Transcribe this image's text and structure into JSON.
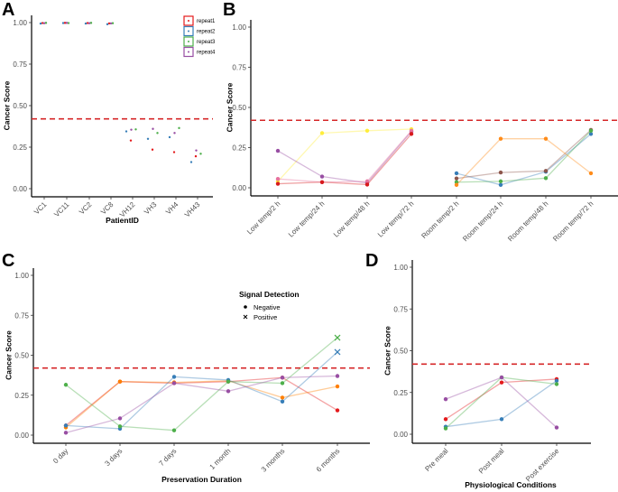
{
  "chart_data": [
    {
      "panel": "A",
      "type": "scatter",
      "title": "",
      "xlabel": "PatientID",
      "ylabel": "Cancer Score",
      "ylim": [
        0,
        1
      ],
      "yticks": [
        "0.00",
        "0.25",
        "0.50",
        "0.75",
        "1.00"
      ],
      "threshold": 0.42,
      "categories": [
        "VC1",
        "VC11",
        "VC2",
        "VC8",
        "VH12",
        "VH3",
        "VH4",
        "VH43"
      ],
      "legend": {
        "position": "top-right",
        "entries": [
          "repeat1",
          "repeat2",
          "repeat3",
          "repeat4"
        ]
      },
      "series": [
        {
          "name": "repeat1",
          "color": "#e41a1c",
          "values": [
            0.997,
            0.998,
            0.997,
            0.995,
            0.29,
            0.235,
            0.22,
            0.195
          ]
        },
        {
          "name": "repeat2",
          "color": "#377eb8",
          "values": [
            0.994,
            0.997,
            0.994,
            0.99,
            0.345,
            0.3,
            0.31,
            0.16
          ]
        },
        {
          "name": "repeat3",
          "color": "#4daf4a",
          "values": [
            0.998,
            0.997,
            0.998,
            0.996,
            0.357,
            0.335,
            0.365,
            0.21
          ]
        },
        {
          "name": "repeat4",
          "color": "#984ea3",
          "values": [
            0.996,
            0.998,
            0.996,
            0.995,
            0.355,
            0.36,
            0.335,
            0.23
          ]
        }
      ]
    },
    {
      "panel": "B",
      "type": "line",
      "xlabel": "",
      "ylabel": "Cancer Score",
      "ylim": [
        0,
        1
      ],
      "yticks": [
        "0.00",
        "0.25",
        "0.50",
        "0.75",
        "1.00"
      ],
      "threshold": 0.42,
      "categories": [
        "Low temp/2 h",
        "Low temp/24 h",
        "Low temp/48 h",
        "Low temp/72 h",
        "Room temp/2 h",
        "Room temp/24 h",
        "Room temp/48 h",
        "Room temp/72 h"
      ],
      "series": [
        {
          "name": "low-yellow",
          "color": "#ffed3a",
          "group": "low",
          "values": [
            0.04,
            0.34,
            0.355,
            0.365
          ]
        },
        {
          "name": "low-purple",
          "color": "#984ea3",
          "group": "low",
          "values": [
            0.23,
            0.07,
            0.03,
            0.35
          ]
        },
        {
          "name": "low-pink",
          "color": "#e7719d",
          "group": "low",
          "values": [
            0.055,
            0.035,
            0.04,
            0.355
          ]
        },
        {
          "name": "low-red",
          "color": "#d7191c",
          "group": "low",
          "values": [
            0.025,
            0.035,
            0.02,
            0.335
          ]
        },
        {
          "name": "room-blue",
          "color": "#377eb8",
          "group": "room",
          "values": [
            0.09,
            0.018,
            0.1,
            0.335
          ]
        },
        {
          "name": "room-brown",
          "color": "#8c564b",
          "group": "room",
          "values": [
            0.058,
            0.095,
            0.105,
            0.36
          ]
        },
        {
          "name": "room-green",
          "color": "#4daf4a",
          "group": "room",
          "values": [
            0.035,
            0.04,
            0.06,
            0.355
          ]
        },
        {
          "name": "room-orange",
          "color": "#ff8c1a",
          "group": "room",
          "values": [
            0.018,
            0.305,
            0.305,
            0.09
          ]
        }
      ]
    },
    {
      "panel": "C",
      "type": "line",
      "xlabel": "Preservation Duration",
      "ylabel": "Cancer Score",
      "ylim": [
        0,
        1
      ],
      "yticks": [
        "0.00",
        "0.25",
        "0.50",
        "0.75",
        "1.00"
      ],
      "threshold": 0.42,
      "categories": [
        "0 day",
        "3 days",
        "7 days",
        "1 month",
        "3 months",
        "6 months"
      ],
      "legend": {
        "position": "top-right",
        "title": "Signal Detection",
        "entries": [
          {
            "label": "Negative",
            "shape": "dot"
          },
          {
            "label": "Positive",
            "shape": "cross"
          }
        ]
      },
      "series": [
        {
          "name": "red",
          "color": "#e41a1c",
          "values": [
            0.06,
            0.335,
            0.325,
            0.335,
            0.36,
            0.155
          ],
          "positive": [
            false,
            false,
            false,
            false,
            false,
            false
          ]
        },
        {
          "name": "orange",
          "color": "#ff7f00",
          "values": [
            0.048,
            0.335,
            0.33,
            0.34,
            0.235,
            0.305
          ],
          "positive": [
            false,
            false,
            false,
            false,
            false,
            false
          ]
        },
        {
          "name": "blue",
          "color": "#377eb8",
          "values": [
            0.06,
            0.04,
            0.365,
            0.345,
            0.21,
            0.52
          ],
          "positive": [
            false,
            false,
            false,
            false,
            false,
            true
          ]
        },
        {
          "name": "green",
          "color": "#4daf4a",
          "values": [
            0.315,
            0.055,
            0.03,
            0.335,
            0.325,
            0.61
          ],
          "positive": [
            false,
            false,
            false,
            false,
            false,
            true
          ]
        },
        {
          "name": "purple",
          "color": "#984ea3",
          "values": [
            0.015,
            0.105,
            0.325,
            0.275,
            0.36,
            0.37
          ],
          "positive": [
            false,
            false,
            false,
            false,
            false,
            false
          ]
        }
      ]
    },
    {
      "panel": "D",
      "type": "line",
      "xlabel": "Physiological Conditions",
      "ylabel": "Cancer Score",
      "ylim": [
        0,
        1
      ],
      "yticks": [
        "0.00",
        "0.25",
        "0.50",
        "0.75",
        "1.00"
      ],
      "threshold": 0.42,
      "categories": [
        "Pre meal",
        "Post meal",
        "Post exercise"
      ],
      "series": [
        {
          "name": "red",
          "color": "#e41a1c",
          "values": [
            0.09,
            0.31,
            0.33
          ]
        },
        {
          "name": "blue",
          "color": "#377eb8",
          "values": [
            0.045,
            0.09,
            0.32
          ]
        },
        {
          "name": "green",
          "color": "#4daf4a",
          "values": [
            0.035,
            0.34,
            0.3
          ]
        },
        {
          "name": "purple",
          "color": "#984ea3",
          "values": [
            0.21,
            0.34,
            0.04
          ]
        }
      ]
    }
  ],
  "threshold_color": "#d62728"
}
